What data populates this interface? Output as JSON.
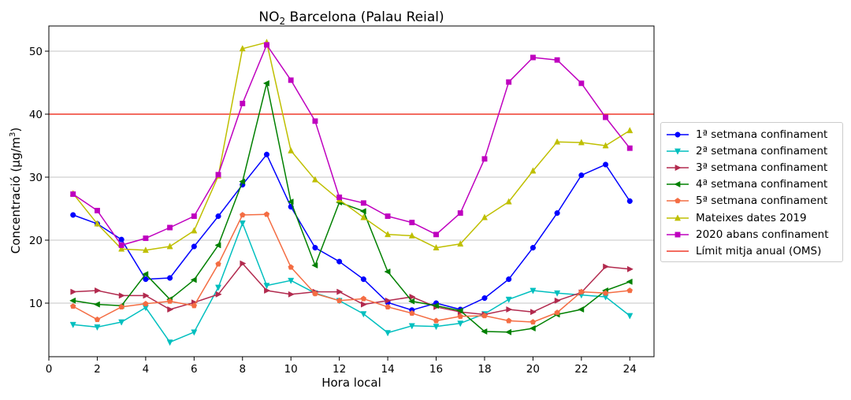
{
  "chart_data": {
    "type": "line",
    "title": "NO₂ Barcelona (Palau Reial)",
    "xlabel": "Hora local",
    "ylabel": "Concentració (µg/m³)",
    "xlim": [
      0,
      25
    ],
    "ylim": [
      1.5,
      54
    ],
    "x_ticks": [
      0,
      2,
      4,
      6,
      8,
      10,
      12,
      14,
      16,
      18,
      20,
      22,
      24
    ],
    "y_ticks": [
      10,
      20,
      30,
      40,
      50
    ],
    "grid": "horizontal",
    "legend_position": "right, outside",
    "x": [
      1,
      2,
      3,
      4,
      5,
      6,
      7,
      8,
      9,
      10,
      11,
      12,
      13,
      14,
      15,
      16,
      17,
      18,
      19,
      20,
      21,
      22,
      23,
      24
    ],
    "series": [
      {
        "name": "1ª setmana confinament",
        "color": "#0000ff",
        "marker": "circle",
        "values": [
          24.0,
          22.6,
          20.1,
          13.8,
          14.0,
          19.0,
          23.8,
          28.8,
          33.6,
          25.3,
          18.8,
          16.6,
          13.8,
          10.1,
          8.9,
          10.0,
          9.0,
          10.8,
          13.8,
          18.8,
          24.3,
          30.3,
          32.0,
          26.2
        ]
      },
      {
        "name": "2ª setmana confinament",
        "color": "#00bfbf",
        "marker": "triangle-down",
        "values": [
          6.6,
          6.2,
          7.0,
          9.3,
          3.8,
          5.4,
          12.5,
          22.7,
          12.8,
          13.6,
          11.6,
          10.4,
          8.3,
          5.3,
          6.4,
          6.3,
          6.8,
          8.3,
          10.6,
          12.0,
          11.6,
          11.3,
          11.0,
          8.0
        ]
      },
      {
        "name": "3ª setmana confinament",
        "color": "#b22a4e",
        "marker": "triangle-right",
        "values": [
          11.8,
          12.0,
          11.2,
          11.2,
          9.0,
          10.1,
          11.4,
          16.3,
          12.0,
          11.4,
          11.8,
          11.8,
          9.8,
          10.4,
          11.0,
          9.4,
          8.6,
          8.2,
          9.0,
          8.6,
          10.4,
          11.7,
          15.8,
          15.4
        ]
      },
      {
        "name": "4ª setmana confinament",
        "color": "#008000",
        "marker": "triangle-left",
        "values": [
          10.4,
          9.8,
          9.6,
          14.6,
          10.6,
          13.7,
          19.2,
          29.3,
          44.9,
          26.1,
          16.0,
          26.0,
          24.6,
          15.0,
          10.3,
          9.6,
          8.8,
          5.5,
          5.4,
          6.0,
          8.2,
          9.0,
          12.0,
          13.4
        ]
      },
      {
        "name": "5ª setmana confinament",
        "color": "#f46d43",
        "marker": "pentagon",
        "values": [
          9.5,
          7.4,
          9.4,
          9.9,
          10.3,
          9.6,
          16.2,
          24.0,
          24.1,
          15.7,
          11.5,
          10.4,
          10.7,
          9.4,
          8.4,
          7.2,
          7.9,
          8.0,
          7.2,
          7.0,
          8.5,
          11.8,
          11.6,
          12.0
        ]
      },
      {
        "name": "Mateixes dates 2019",
        "color": "#bfbf00",
        "marker": "triangle-up",
        "values": [
          27.4,
          22.6,
          18.6,
          18.4,
          19.0,
          21.5,
          30.2,
          50.4,
          51.4,
          34.2,
          29.6,
          26.4,
          23.6,
          20.9,
          20.7,
          18.8,
          19.4,
          23.6,
          26.1,
          31.0,
          35.6,
          35.5,
          35.0,
          37.4
        ]
      },
      {
        "name": "2020 abans confinament",
        "color": "#bf00bf",
        "marker": "square",
        "values": [
          27.3,
          24.7,
          19.2,
          20.3,
          22.0,
          23.8,
          30.4,
          41.7,
          51.0,
          45.4,
          38.9,
          26.8,
          25.9,
          23.8,
          22.8,
          20.9,
          24.3,
          32.9,
          45.1,
          49.0,
          48.6,
          44.9,
          39.5,
          34.6
        ]
      }
    ],
    "reference_line": {
      "name": "Límit mitja anual (OMS)",
      "color": "#ef3b2c",
      "y": 40
    }
  }
}
